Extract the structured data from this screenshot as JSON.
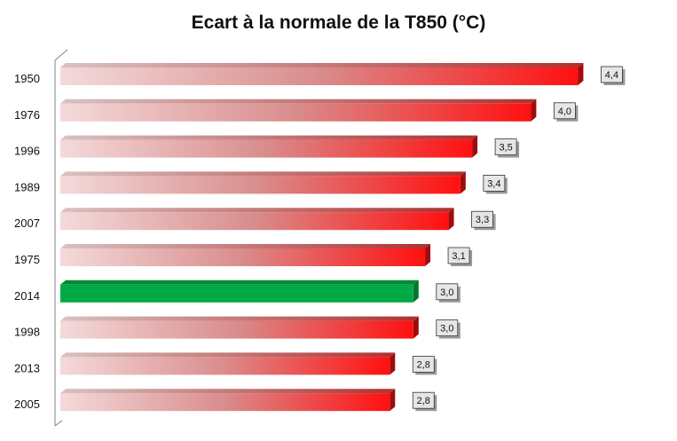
{
  "chart_data": {
    "type": "bar",
    "orientation": "horizontal",
    "title": "Ecart à la normale de la T850 (°C)",
    "xlabel": "",
    "ylabel": "",
    "categories": [
      "1950",
      "1976",
      "1996",
      "1989",
      "2007",
      "1975",
      "2014",
      "1998",
      "2013",
      "2005"
    ],
    "values": [
      4.4,
      4.0,
      3.5,
      3.4,
      3.3,
      3.1,
      3.0,
      3.0,
      2.8,
      2.8
    ],
    "value_labels": [
      "4,4",
      "4,0",
      "3,5",
      "3,4",
      "3,3",
      "3,1",
      "3,0",
      "3,0",
      "2,8",
      "2,8"
    ],
    "xlim": [
      0,
      5
    ],
    "highlight_category": "2014",
    "grid": false,
    "legend": "none",
    "colors": {
      "bar_gradient_start": "#f4dada",
      "bar_gradient_mid": "#d98c8c",
      "bar_gradient_end": "#ff1010",
      "highlight": "#00aa44",
      "axis_line": "#808080",
      "label_box": "#e6e6e6"
    }
  }
}
